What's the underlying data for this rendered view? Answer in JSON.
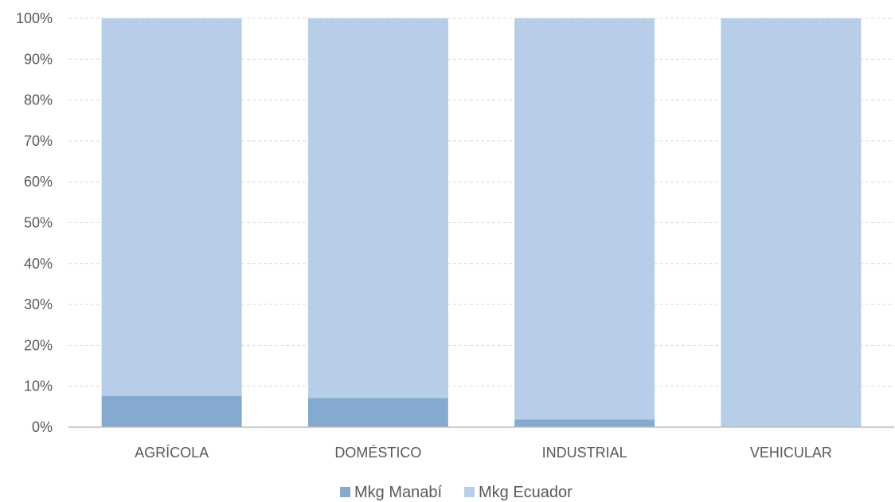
{
  "chart_data": {
    "type": "bar",
    "stacked": "percent",
    "categories": [
      "AGRÍCOLA",
      "DOMÉSTICO",
      "INDUSTRIAL",
      "VEHICULAR"
    ],
    "series": [
      {
        "name": "Mkg Manabí",
        "values": [
          7.6,
          7.1,
          1.9,
          0.0
        ],
        "color": "#84aacf"
      },
      {
        "name": "Mkg Ecuador",
        "values": [
          92.4,
          92.9,
          98.1,
          100.0
        ],
        "color": "#b7cde8"
      }
    ],
    "y_ticks": [
      "0%",
      "10%",
      "20%",
      "30%",
      "40%",
      "50%",
      "60%",
      "70%",
      "80%",
      "90%",
      "100%"
    ],
    "ylim": [
      0,
      100
    ],
    "grid": true,
    "legend": "bottom-center",
    "title": "",
    "xlabel": "",
    "ylabel": ""
  }
}
